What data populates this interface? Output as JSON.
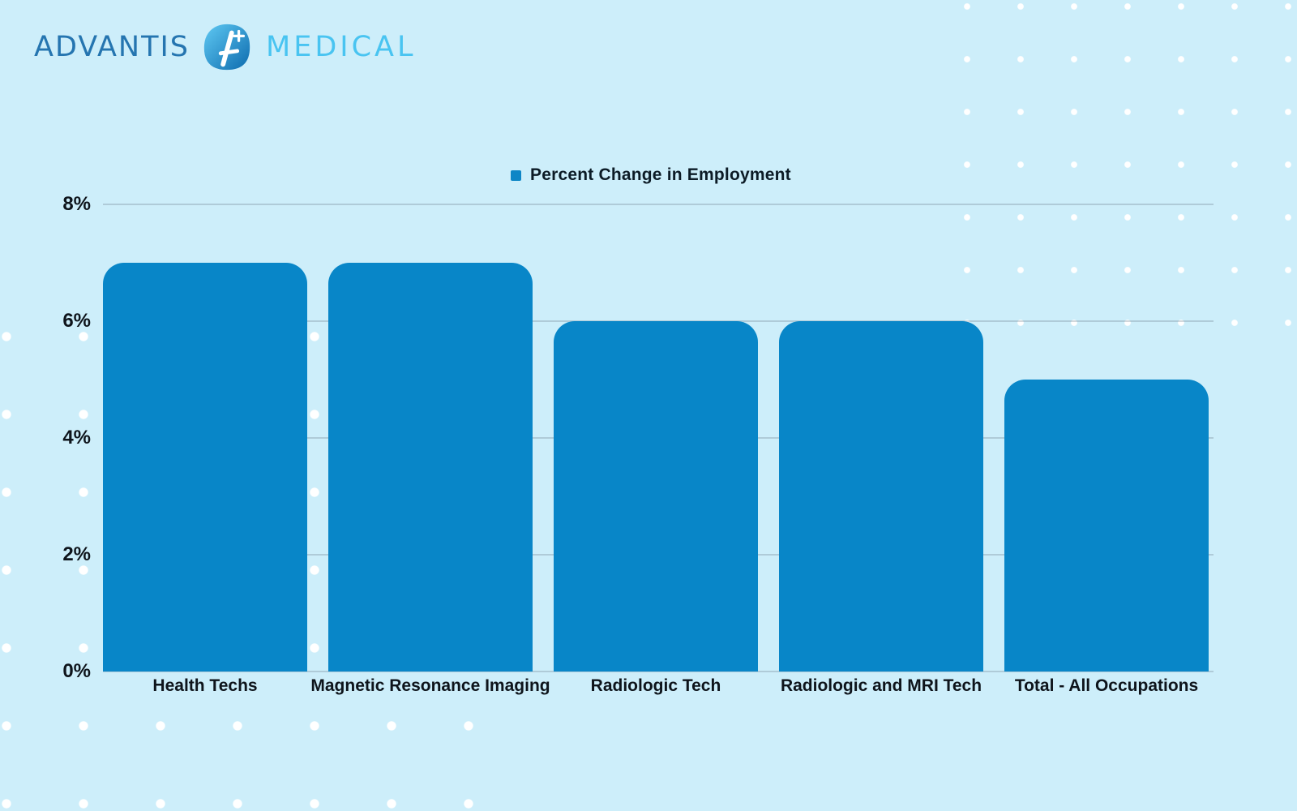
{
  "brand": {
    "primary": "ADVANTIS",
    "secondary": "MEDICAL",
    "icon": "advantis-a-plus-drop-icon",
    "primary_color": "#2575B0",
    "secondary_color": "#49C4F1",
    "icon_gradient": [
      "#5FC9F3",
      "#0D6BAE"
    ]
  },
  "chart_data": {
    "type": "bar",
    "title": "",
    "legend": [
      {
        "label": "Percent Change in Employment",
        "color": "#0E86C6"
      }
    ],
    "legend_position": "top-center",
    "categories": [
      "Health Techs",
      "Magnetic Resonance Imaging",
      "Radiologic Tech",
      "Radiologic and MRI Tech",
      "Total - All Occupations"
    ],
    "values": [
      7,
      7,
      6,
      6,
      5
    ],
    "unit": "%",
    "ylim": [
      0,
      8
    ],
    "yticks": [
      8,
      6,
      4,
      2,
      0
    ],
    "ytick_labels": [
      "8%",
      "6%",
      "4%",
      "2%",
      "0%"
    ],
    "grid": true,
    "bar_color": "#0886C8",
    "background_color": "#CDEEFA"
  }
}
